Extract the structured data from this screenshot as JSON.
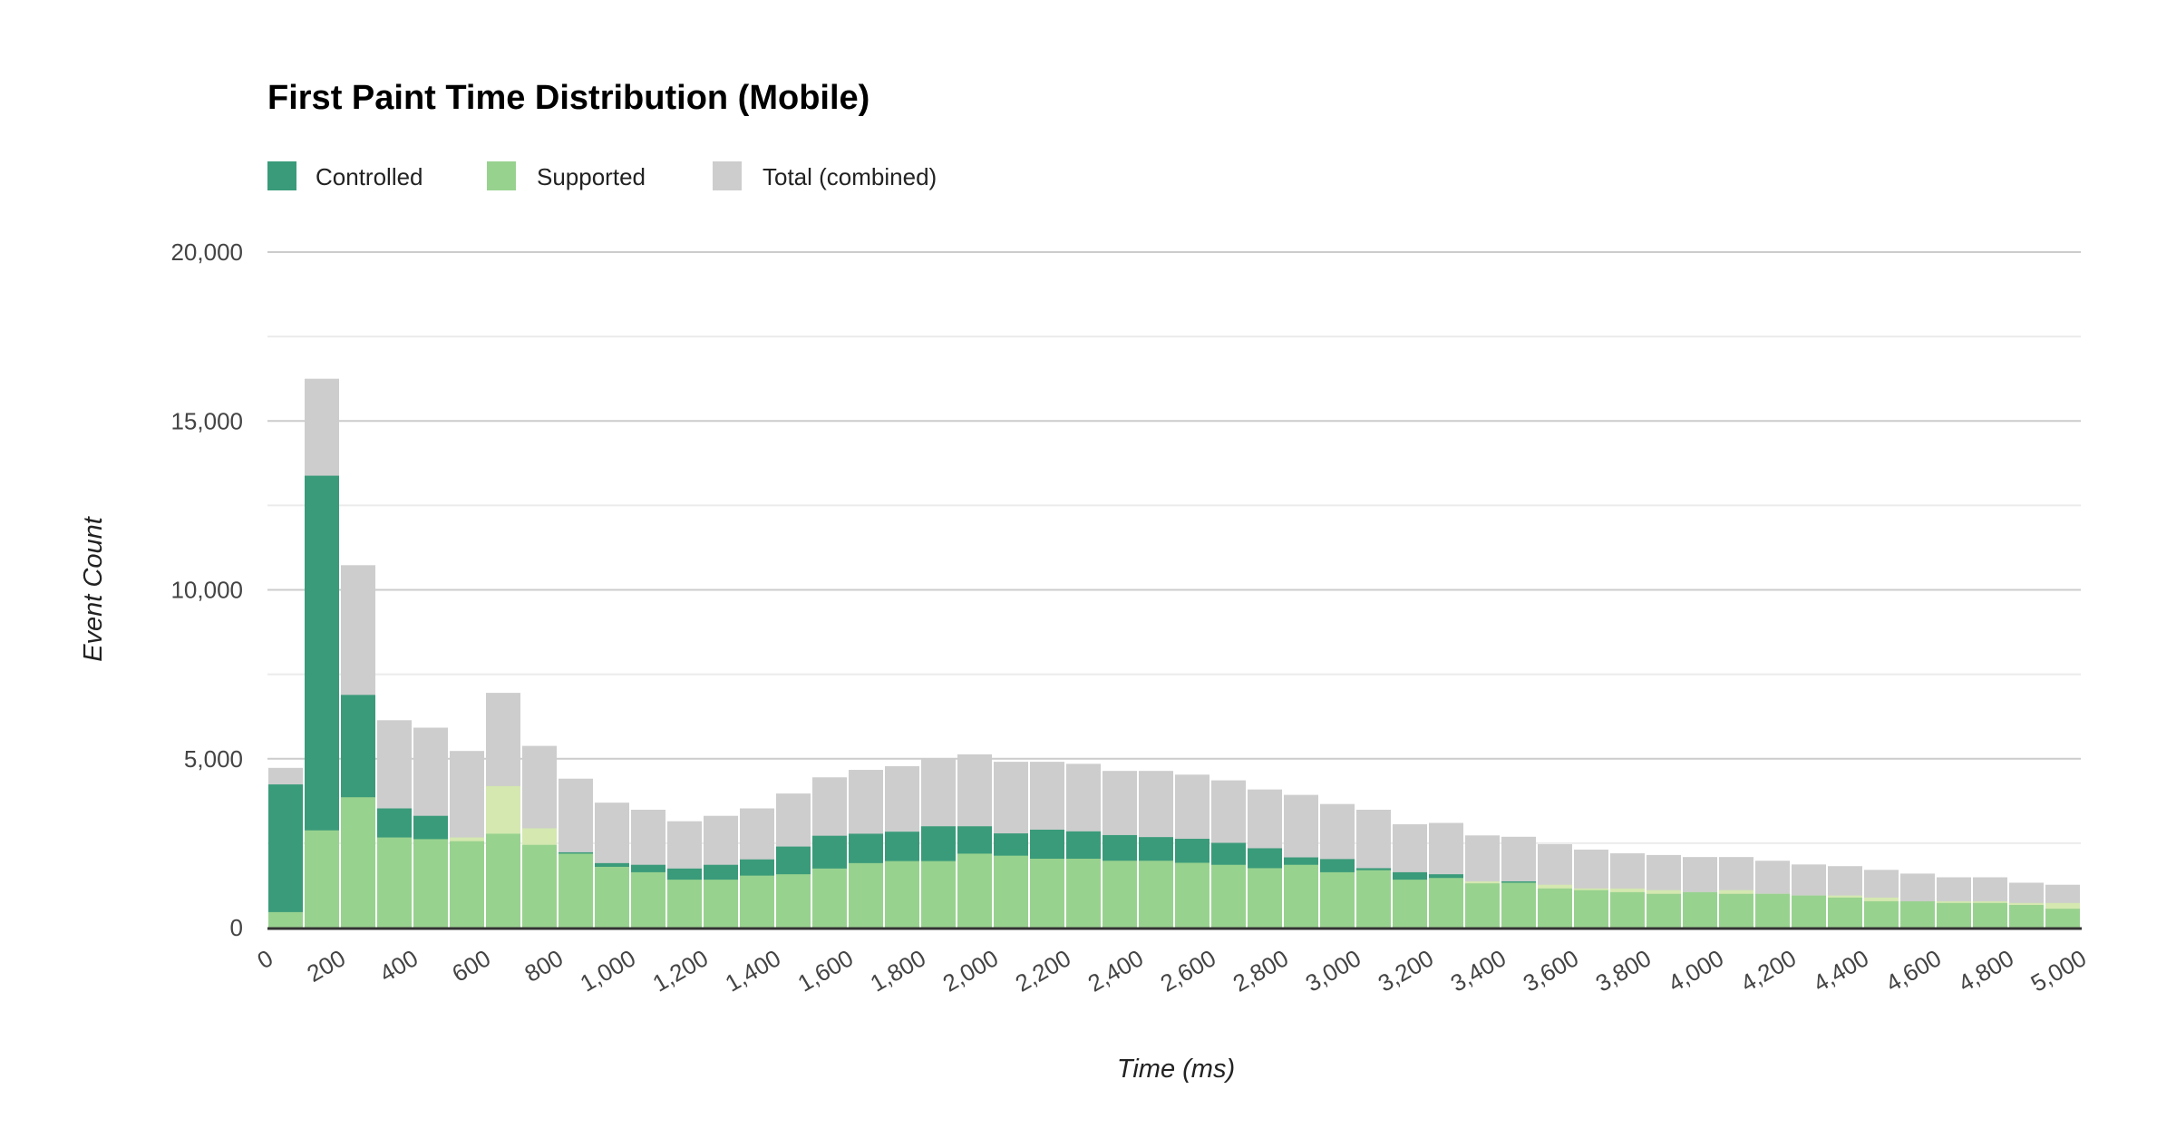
{
  "chart_data": {
    "type": "bar",
    "title": "First Paint Time Distribution (Mobile)",
    "xlabel": "Time (ms)",
    "ylabel": "Event Count",
    "xlim": [
      0,
      5000
    ],
    "ylim": [
      0,
      20000
    ],
    "bin_width": 100,
    "grid": true,
    "legend_position": "top-left",
    "y_ticks": [
      "0",
      "5,000",
      "10,000",
      "15,000",
      "20,000"
    ],
    "y_tick_values": [
      0,
      5000,
      10000,
      15000,
      20000
    ],
    "x_ticks": [
      "0",
      "200",
      "400",
      "600",
      "800",
      "1,000",
      "1,200",
      "1,400",
      "1,600",
      "1,800",
      "2,000",
      "2,200",
      "2,400",
      "2,600",
      "2,800",
      "3,000",
      "3,200",
      "3,400",
      "3,600",
      "3,800",
      "4,000",
      "4,200",
      "4,400",
      "4,600",
      "4,800",
      "5,000"
    ],
    "x_tick_values": [
      0,
      200,
      400,
      600,
      800,
      1000,
      1200,
      1400,
      1600,
      1800,
      2000,
      2200,
      2400,
      2600,
      2800,
      3000,
      3200,
      3400,
      3600,
      3800,
      4000,
      4200,
      4400,
      4600,
      4800,
      5000
    ],
    "bins_start": [
      0,
      100,
      200,
      300,
      400,
      500,
      600,
      700,
      800,
      900,
      1000,
      1100,
      1200,
      1300,
      1400,
      1500,
      1600,
      1700,
      1800,
      1900,
      2000,
      2100,
      2200,
      2300,
      2400,
      2500,
      2600,
      2700,
      2800,
      2900,
      3000,
      3100,
      3200,
      3300,
      3400,
      3500,
      3600,
      3700,
      3800,
      3900,
      4000,
      4100,
      4200,
      4300,
      4400,
      4500,
      4600,
      4700,
      4800,
      4900
    ],
    "series": [
      {
        "name": "Controlled",
        "color": "#3a9b7a",
        "values": [
          4240,
          13380,
          6890,
          3530,
          3310,
          2560,
          2780,
          2450,
          2230,
          1910,
          1860,
          1750,
          1860,
          2020,
          2400,
          2720,
          2780,
          2840,
          3000,
          3000,
          2790,
          2900,
          2850,
          2740,
          2680,
          2630,
          2510,
          2350,
          2080,
          2030,
          1760,
          1640,
          1580,
          1310,
          1370,
          1160,
          1110,
          1050,
          1000,
          1050,
          1000,
          1000,
          950,
          890,
          780,
          780,
          730,
          730,
          670,
          560
        ]
      },
      {
        "name": "Supported",
        "color": "#98d28f",
        "values": [
          460,
          2880,
          3860,
          2670,
          2620,
          2670,
          4190,
          2940,
          2190,
          1800,
          1640,
          1420,
          1420,
          1540,
          1580,
          1750,
          1910,
          1970,
          1970,
          2190,
          2130,
          2040,
          2040,
          1980,
          1980,
          1920,
          1860,
          1760,
          1860,
          1640,
          1700,
          1420,
          1470,
          1370,
          1330,
          1270,
          1160,
          1160,
          1110,
          1050,
          1110,
          1000,
          950,
          950,
          890,
          780,
          780,
          780,
          730,
          730
        ]
      },
      {
        "name": "Total (combined)",
        "color": "#cdcdcd",
        "values": [
          4730,
          16250,
          10730,
          6140,
          5920,
          5230,
          6950,
          5380,
          4410,
          3700,
          3490,
          3150,
          3310,
          3530,
          3970,
          4450,
          4670,
          4780,
          5000,
          5130,
          4910,
          4910,
          4850,
          4640,
          4640,
          4530,
          4360,
          4090,
          3930,
          3660,
          3490,
          3060,
          3100,
          2730,
          2690,
          2470,
          2310,
          2200,
          2150,
          2090,
          2090,
          1980,
          1870,
          1820,
          1710,
          1600,
          1490,
          1490,
          1330,
          1270
        ]
      }
    ],
    "overlap_color": "#d4e8b0"
  },
  "legend": [
    {
      "label": "Controlled",
      "color": "#3a9b7a"
    },
    {
      "label": "Supported",
      "color": "#98d28f"
    },
    {
      "label": "Total (combined)",
      "color": "#cdcdcd"
    }
  ]
}
